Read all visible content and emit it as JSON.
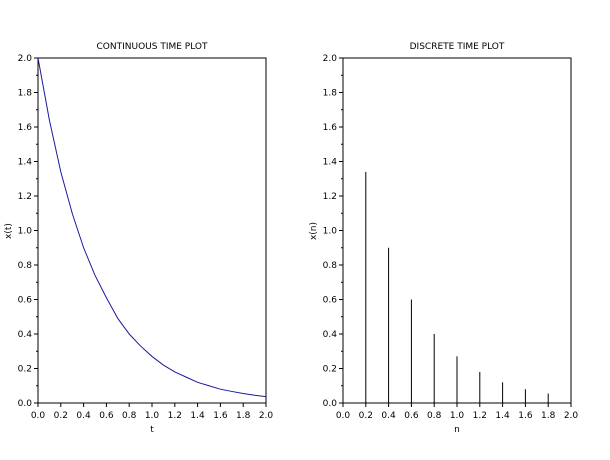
{
  "chart_data": [
    {
      "type": "line",
      "title": "CONTINUOUS TIME PLOT",
      "xlabel": "t",
      "ylabel": "x(t)",
      "xlim": [
        0,
        2
      ],
      "ylim": [
        0,
        2
      ],
      "x_ticks": [
        "0.0",
        "0.2",
        "0.4",
        "0.6",
        "0.8",
        "1.0",
        "1.2",
        "1.4",
        "1.6",
        "1.8",
        "2.0"
      ],
      "y_ticks": [
        "0.0",
        "0.2",
        "0.4",
        "0.6",
        "0.8",
        "1.0",
        "1.2",
        "1.4",
        "1.6",
        "1.8",
        "2.0"
      ],
      "grid": false,
      "series": [
        {
          "color": "#1a1aa0",
          "x": [
            0.0,
            0.1,
            0.2,
            0.3,
            0.4,
            0.5,
            0.6,
            0.7,
            0.8,
            0.9,
            1.0,
            1.1,
            1.2,
            1.3,
            1.4,
            1.5,
            1.6,
            1.7,
            1.8,
            1.9,
            2.0
          ],
          "y": [
            2.0,
            1.64,
            1.34,
            1.1,
            0.9,
            0.74,
            0.61,
            0.49,
            0.4,
            0.33,
            0.27,
            0.22,
            0.18,
            0.15,
            0.12,
            0.1,
            0.08,
            0.067,
            0.055,
            0.045,
            0.037
          ]
        }
      ]
    },
    {
      "type": "stem",
      "title": "DISCRETE TIME PLOT",
      "xlabel": "n",
      "ylabel": "x(n)",
      "xlim": [
        0,
        2
      ],
      "ylim": [
        0,
        2
      ],
      "x_ticks": [
        "0.0",
        "0.2",
        "0.4",
        "0.6",
        "0.8",
        "1.0",
        "1.2",
        "1.4",
        "1.6",
        "1.8",
        "2.0"
      ],
      "y_ticks": [
        "0.0",
        "0.2",
        "0.4",
        "0.6",
        "0.8",
        "1.0",
        "1.2",
        "1.4",
        "1.6",
        "1.8",
        "2.0"
      ],
      "grid": false,
      "series": [
        {
          "color": "#000000",
          "x": [
            0.2,
            0.4,
            0.6,
            0.8,
            1.0,
            1.2,
            1.4,
            1.6,
            1.8,
            2.0
          ],
          "y": [
            1.34,
            0.9,
            0.6,
            0.4,
            0.27,
            0.18,
            0.12,
            0.08,
            0.055,
            0.035
          ]
        }
      ]
    }
  ]
}
